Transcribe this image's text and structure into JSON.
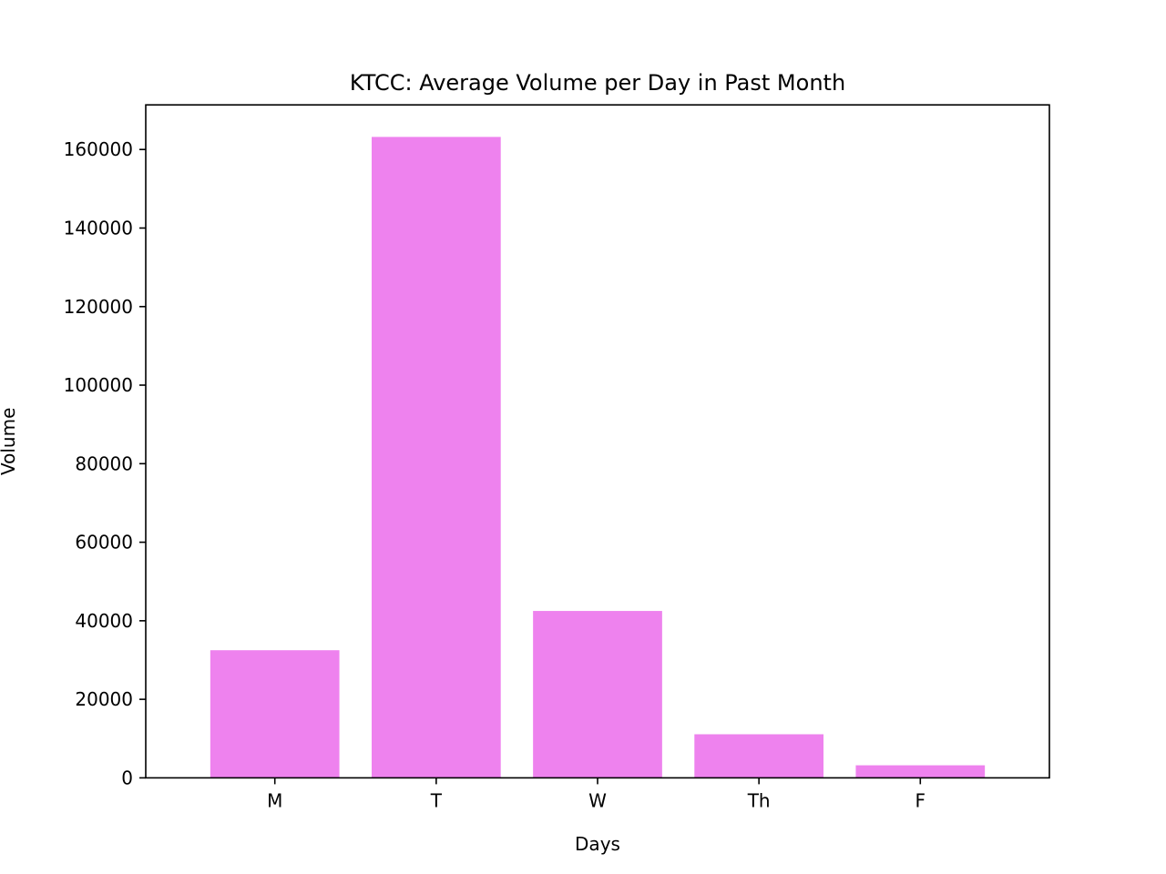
{
  "chart_data": {
    "type": "bar",
    "title": "KTCC: Average Volume per Day in Past Month",
    "xlabel": "Days",
    "ylabel": "Volume",
    "categories": [
      "M",
      "T",
      "W",
      "Th",
      "F"
    ],
    "values": [
      32500,
      163200,
      42500,
      11100,
      3200
    ],
    "ylim": [
      0,
      171360
    ],
    "yticks": [
      0,
      20000,
      40000,
      60000,
      80000,
      100000,
      120000,
      140000,
      160000
    ],
    "ytick_labels": [
      "0",
      "20000",
      "40000",
      "60000",
      "80000",
      "100000",
      "120000",
      "140000",
      "160000"
    ],
    "bar_color": "#ee82ee",
    "grid": false,
    "legend": null
  }
}
